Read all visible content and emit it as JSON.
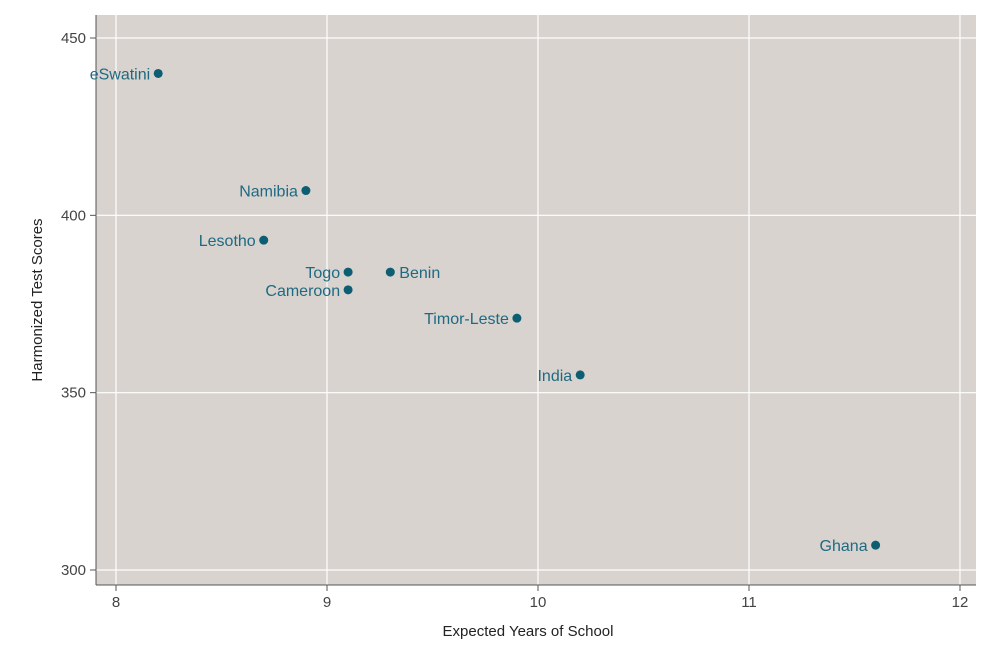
{
  "chart_data": {
    "type": "scatter",
    "xlabel": "Expected Years of School",
    "ylabel": "Harmonized Test Scores",
    "xlim": [
      8,
      12
    ],
    "ylim": [
      300,
      450
    ],
    "xticks": [
      "8",
      "9",
      "10",
      "11",
      "12"
    ],
    "yticks": [
      "300",
      "350",
      "400",
      "450"
    ],
    "grid": true,
    "points": [
      {
        "label": "eSwatini",
        "x": 8.2,
        "y": 440,
        "label_side": "left"
      },
      {
        "label": "Namibia",
        "x": 8.9,
        "y": 407,
        "label_side": "left"
      },
      {
        "label": "Lesotho",
        "x": 8.7,
        "y": 393,
        "label_side": "left"
      },
      {
        "label": "Togo",
        "x": 9.1,
        "y": 384,
        "label_side": "left"
      },
      {
        "label": "Benin",
        "x": 9.3,
        "y": 384,
        "label_side": "right"
      },
      {
        "label": "Cameroon",
        "x": 9.1,
        "y": 379,
        "label_side": "left"
      },
      {
        "label": "Timor-Leste",
        "x": 9.9,
        "y": 371,
        "label_side": "left"
      },
      {
        "label": "India",
        "x": 10.2,
        "y": 355,
        "label_side": "left"
      },
      {
        "label": "Ghana",
        "x": 11.6,
        "y": 307,
        "label_side": "left"
      }
    ],
    "colors": {
      "plot_background": "#d8d3cf",
      "grid": "#ffffff",
      "point": "#0e5e73",
      "label": "#1e6a82",
      "axis": "#555555"
    }
  }
}
